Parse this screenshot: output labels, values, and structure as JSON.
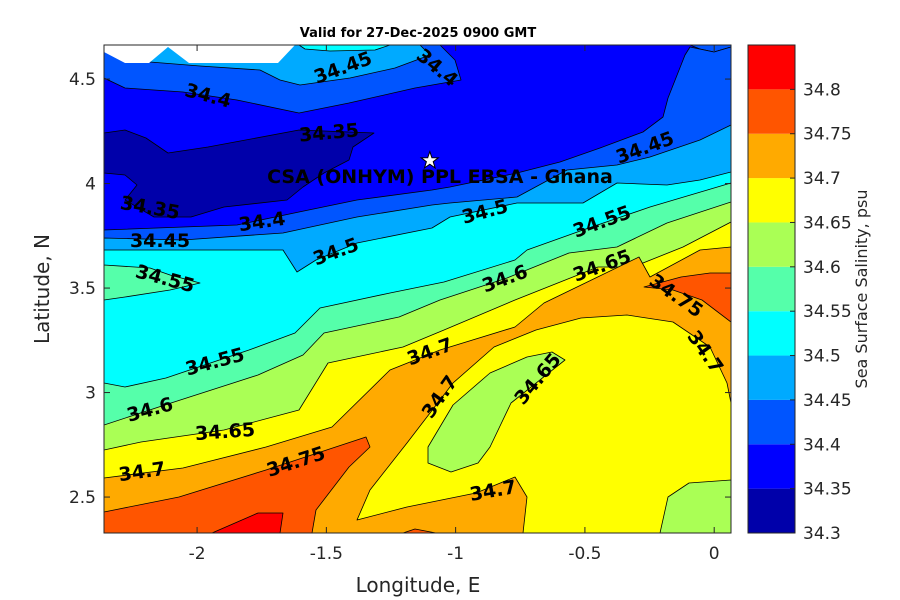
{
  "chart_data": {
    "type": "contour",
    "title": "Valid for 27-Dec-2025 0900 GMT",
    "xlabel": "Longitude, E",
    "ylabel": "Latitude, N",
    "xlim": [
      -2.36,
      0.065
    ],
    "ylim": [
      2.328,
      4.663
    ],
    "xticks": [
      -2,
      -1.5,
      -1,
      -0.5,
      0
    ],
    "xtick_labels": [
      "-2",
      "-1.5",
      "-1",
      "-0.5",
      "0"
    ],
    "yticks": [
      2.5,
      3,
      3.5,
      4,
      4.5
    ],
    "ytick_labels": [
      "2.5",
      "3",
      "3.5",
      "4",
      "4.5"
    ],
    "grid": false,
    "colorbar": {
      "label": "Sea Surface Salinity, psu",
      "levels": [
        34.3,
        34.35,
        34.4,
        34.45,
        34.5,
        34.55,
        34.6,
        34.65,
        34.7,
        34.75,
        34.8,
        34.85
      ],
      "colors": [
        "#0000aa",
        "#0000ff",
        "#0055ff",
        "#00aaff",
        "#00ffff",
        "#55ffaa",
        "#aaff55",
        "#ffff00",
        "#ffaa00",
        "#ff5500",
        "#ff0000"
      ],
      "ticks": [
        34.3,
        34.35,
        34.4,
        34.45,
        34.5,
        34.55,
        34.6,
        34.65,
        34.7,
        34.75,
        34.8
      ],
      "tick_labels": [
        "34.3",
        "34.35",
        "34.4",
        "34.45",
        "34.5",
        "34.55",
        "34.6",
        "34.65",
        "34.7",
        "34.75",
        "34.8"
      ]
    },
    "contour_labels": [
      "34.45",
      "34.4",
      "34.4",
      "34.35",
      "34.35",
      "34.4",
      "34.45",
      "34.5",
      "34.55",
      "34.45",
      "34.5",
      "34.55",
      "34.6",
      "34.65",
      "34.7",
      "34.75",
      "34.7",
      "34.55",
      "34.6",
      "34.65",
      "34.7",
      "34.75",
      "34.7",
      "34.65",
      "34.7"
    ],
    "annotation": {
      "text": "CSA (ONHYM) PPL EBSA - Ghana",
      "marker": "star",
      "lon": -1.1,
      "lat": 4.11
    },
    "no_data_color": "#ffffff"
  }
}
